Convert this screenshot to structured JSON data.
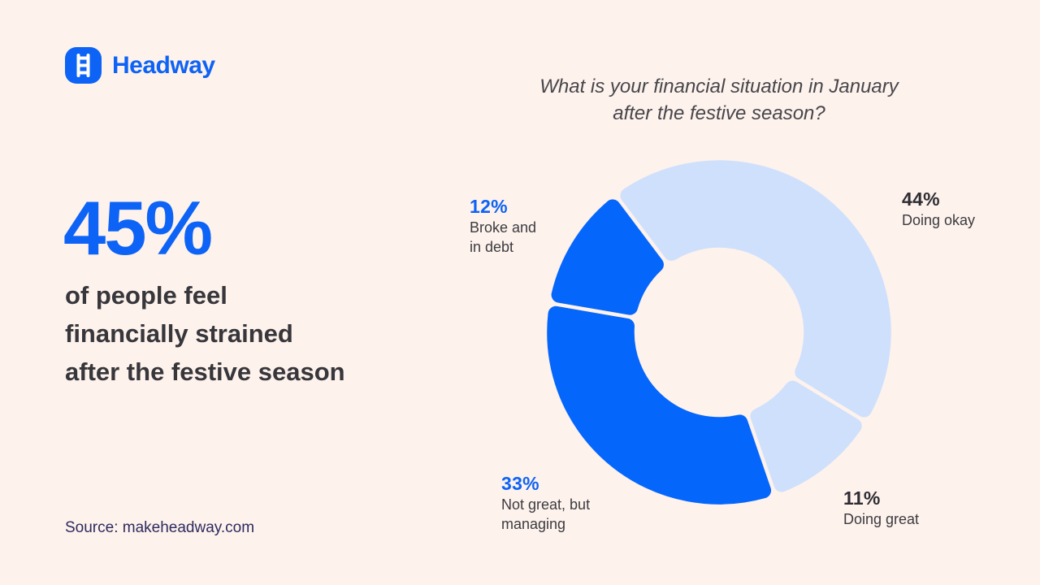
{
  "page": {
    "background": "#fdf2ec"
  },
  "brand": {
    "name": "Headway",
    "accent_color": "#0d63f5",
    "icon": "ladder-icon"
  },
  "hero": {
    "stat": "45%",
    "stat_color": "#0d63f5",
    "lines": [
      "of people feel",
      "financially strained",
      "after the festive season"
    ]
  },
  "source": {
    "text": "Source: makeheadway.com"
  },
  "chart_data": {
    "type": "pie",
    "variant": "donut",
    "title": "What is your financial situation in January after the festive season?",
    "title_lines": [
      "What is your financial situation in January",
      "after the festive season?"
    ],
    "legend_position": "around-chart",
    "start_angle_deg": -37,
    "direction": "clockwise",
    "segments": [
      {
        "label": "Doing okay",
        "value": 44,
        "pct_label": "44%",
        "color": "#cfe0fc",
        "label_color": "#2e2d33"
      },
      {
        "label": "Doing great",
        "value": 11,
        "pct_label": "11%",
        "color": "#cfe0fc",
        "label_color": "#2e2d33"
      },
      {
        "label": "Not great, but managing",
        "value": 33,
        "pct_label": "33%",
        "color": "#0566fb",
        "label_color": "#0d63f5"
      },
      {
        "label": "Broke and in debt",
        "value": 12,
        "pct_label": "12%",
        "color": "#0566fb",
        "label_color": "#0d63f5"
      }
    ],
    "geometry": {
      "outer_radius": 214,
      "inner_radius": 102,
      "corner_radius": 12,
      "gap_stroke": 4.5
    }
  }
}
